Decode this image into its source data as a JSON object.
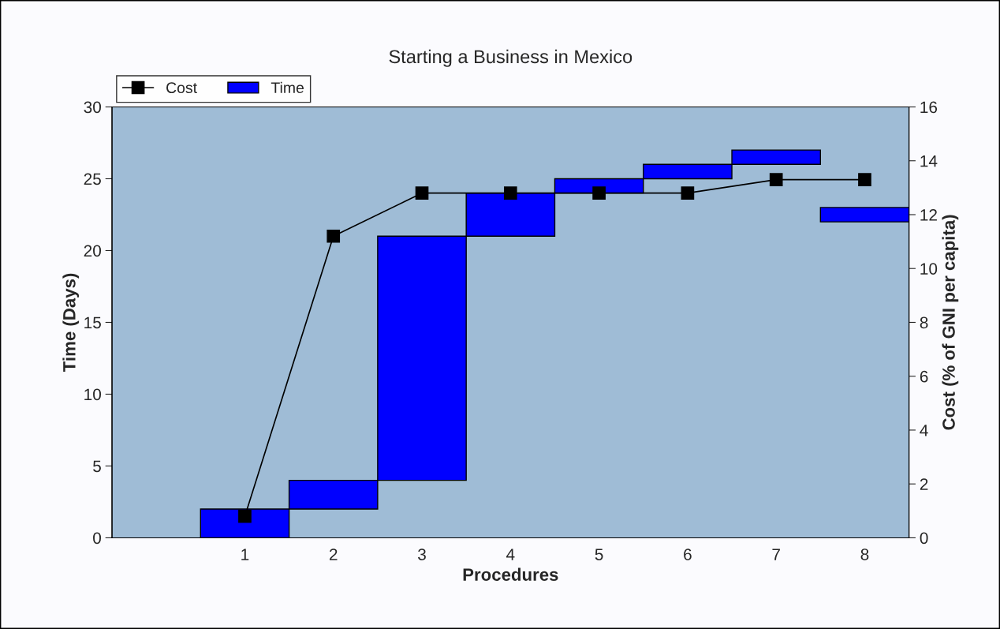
{
  "chart_data": {
    "type": "bar",
    "title": "Starting a Business in Mexico",
    "xlabel": "Procedures",
    "ylabel": "Time (Days)",
    "y2label": "Cost (% of GNI per capita)",
    "categories": [
      "1",
      "2",
      "3",
      "4",
      "5",
      "6",
      "7",
      "8"
    ],
    "series": [
      {
        "name": "Cost",
        "type": "line",
        "axis": "y2",
        "color": "#000000",
        "marker": "square",
        "values": [
          0.8,
          11.2,
          12.8,
          12.8,
          12.8,
          12.8,
          13.3,
          13.3
        ]
      },
      {
        "name": "Time",
        "color": "#0000ff",
        "base": [
          0,
          2,
          4,
          21,
          24,
          25,
          26,
          22
        ],
        "values": [
          2,
          2,
          17,
          3,
          1,
          1,
          1,
          1
        ]
      }
    ],
    "ylim": [
      0,
      30
    ],
    "yticks": [
      0,
      5,
      10,
      15,
      20,
      25,
      30
    ],
    "y2lim": [
      0,
      16
    ],
    "y2ticks": [
      0,
      2,
      4,
      6,
      8,
      10,
      12,
      14,
      16
    ],
    "grid": false,
    "legend": "top left"
  }
}
